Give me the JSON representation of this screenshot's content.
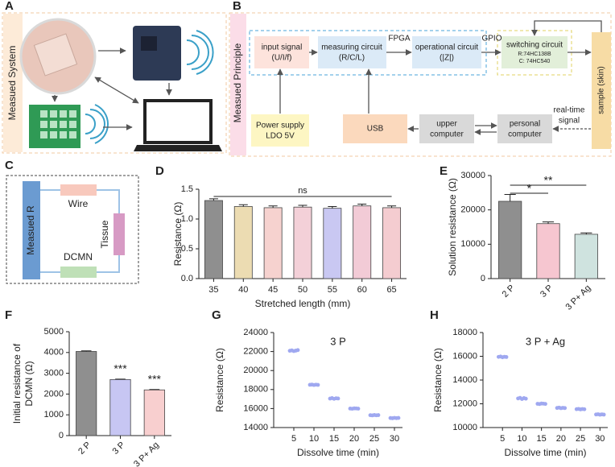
{
  "panel_labels": [
    "A",
    "B",
    "C",
    "D",
    "E",
    "F",
    "G",
    "H"
  ],
  "panel_a": {
    "label": "Measued System"
  },
  "panel_b": {
    "label": "Measued Principle",
    "input": [
      "input signal",
      "(U/I/f)"
    ],
    "measuring": [
      "measuring circuit",
      "(R/C/L)"
    ],
    "operational": [
      "operational circuit",
      "(|Z|)"
    ],
    "switching": [
      "switching circuit",
      "R:74HC138B",
      "C:  74HC540"
    ],
    "sample": "sample (skin)",
    "power": [
      "Power supply",
      "LDO 5V"
    ],
    "usb": "USB",
    "upper": [
      "upper",
      "computer"
    ],
    "personal": [
      "personal",
      "computer"
    ],
    "fpga": "FPGA",
    "gpio": "GPIO",
    "realtime": [
      "real-time",
      "signal"
    ]
  },
  "panel_c": {
    "label": "Measued R",
    "wire": "Wire",
    "tissue": "Tissue",
    "dcmn": "DCMN"
  },
  "chart_data": [
    {
      "type": "bar",
      "categories": [
        "35",
        "40",
        "45",
        "50",
        "55",
        "60",
        "65"
      ],
      "values": [
        1.31,
        1.21,
        1.19,
        1.2,
        1.18,
        1.22,
        1.19
      ],
      "errors": [
        0.03,
        0.03,
        0.03,
        0.03,
        0.03,
        0.03,
        0.03
      ],
      "colors": [
        "#8f8f8f",
        "#ecdcb2",
        "#f6d2cf",
        "#f3d0d8",
        "#c9c8f2",
        "#f2cbd6",
        "#f4ccd0"
      ],
      "ylim": [
        0,
        1.5
      ],
      "yticks": [
        {
          "value": 0,
          "label": "0.0"
        },
        {
          "value": 0.5,
          "label": "0.5"
        },
        {
          "value": 1,
          "label": "1.0"
        },
        {
          "value": 1.5,
          "label": "1.5"
        }
      ],
      "xlabel": "Stretched length (mm)",
      "ylabel": "Resistance (Ω)",
      "annotations": [
        "ns"
      ]
    },
    {
      "type": "bar",
      "categories": [
        "2 P",
        "3 P",
        "3 P+ Ag"
      ],
      "values": [
        22500,
        16000,
        12900
      ],
      "errors": [
        2000,
        500,
        400
      ],
      "colors": [
        "#8f8f8f",
        "#f6c6d0",
        "#cfe3df"
      ],
      "ylim": [
        0,
        30000
      ],
      "yticks": [
        0,
        10000,
        20000,
        30000
      ],
      "ylabel": "Solution resistance (Ω)",
      "annotations": [
        "*",
        "**"
      ]
    },
    {
      "type": "bar",
      "categories": [
        "2 P",
        "3 P",
        "3 P+ Ag"
      ],
      "values": [
        4050,
        2700,
        2200
      ],
      "errors": [
        30,
        20,
        20
      ],
      "colors": [
        "#8f8f8f",
        "#c7c6f3",
        "#f8cfcf"
      ],
      "ylim": [
        0,
        5000
      ],
      "yticks": [
        0,
        1000,
        2000,
        3000,
        4000,
        5000
      ],
      "ylabel": [
        "Initial resistance of",
        "DCMN (Ω)"
      ],
      "annotations": [
        "***",
        "***"
      ]
    },
    {
      "type": "scatter",
      "title": "3 P",
      "color": "#9fa8f0",
      "x": [
        4,
        4.5,
        5,
        5.5,
        6,
        9,
        9.5,
        10,
        10.5,
        11,
        14,
        14.5,
        15,
        15.5,
        16,
        19,
        19.5,
        20,
        20.5,
        21,
        24,
        24.5,
        25,
        25.5,
        26,
        29,
        29.5,
        30,
        30.5,
        31
      ],
      "values": [
        22080,
        22120,
        22050,
        22100,
        22150,
        18500,
        18520,
        18480,
        18510,
        18490,
        17050,
        17100,
        17020,
        17080,
        17060,
        16000,
        15980,
        16020,
        16010,
        15990,
        15300,
        15280,
        15320,
        15290,
        15310,
        15000,
        14980,
        15020,
        14990,
        15010
      ],
      "xlim": [
        0,
        32
      ],
      "xticks": [
        5,
        10,
        15,
        20,
        25,
        30
      ],
      "ylim": [
        14000,
        24000
      ],
      "yticks": [
        14000,
        16000,
        18000,
        20000,
        22000,
        24000
      ],
      "xlabel": "Dissolve time (min)",
      "ylabel": "Resistance (Ω)"
    },
    {
      "type": "scatter",
      "title": "3 P + Ag",
      "color": "#9fa8f0",
      "x": [
        4,
        4.5,
        5,
        5.5,
        6,
        9,
        9.5,
        10,
        10.5,
        11,
        14,
        14.5,
        15,
        15.5,
        16,
        19,
        19.5,
        20,
        20.5,
        21,
        24,
        24.5,
        25,
        25.5,
        26,
        29,
        29.5,
        30,
        30.5,
        31
      ],
      "values": [
        15950,
        15980,
        15920,
        15960,
        15940,
        12450,
        12500,
        12400,
        12480,
        12430,
        12000,
        11980,
        12020,
        12010,
        11990,
        11650,
        11680,
        11630,
        11660,
        11640,
        11550,
        11570,
        11530,
        11560,
        11540,
        11100,
        11120,
        11080,
        11110,
        11090
      ],
      "xlim": [
        0,
        32
      ],
      "xticks": [
        5,
        10,
        15,
        20,
        25,
        30
      ],
      "ylim": [
        10000,
        18000
      ],
      "yticks": [
        10000,
        12000,
        14000,
        16000,
        18000
      ],
      "xlabel": "Dissolve time (min)",
      "ylabel": "Resistance (Ω)"
    }
  ]
}
